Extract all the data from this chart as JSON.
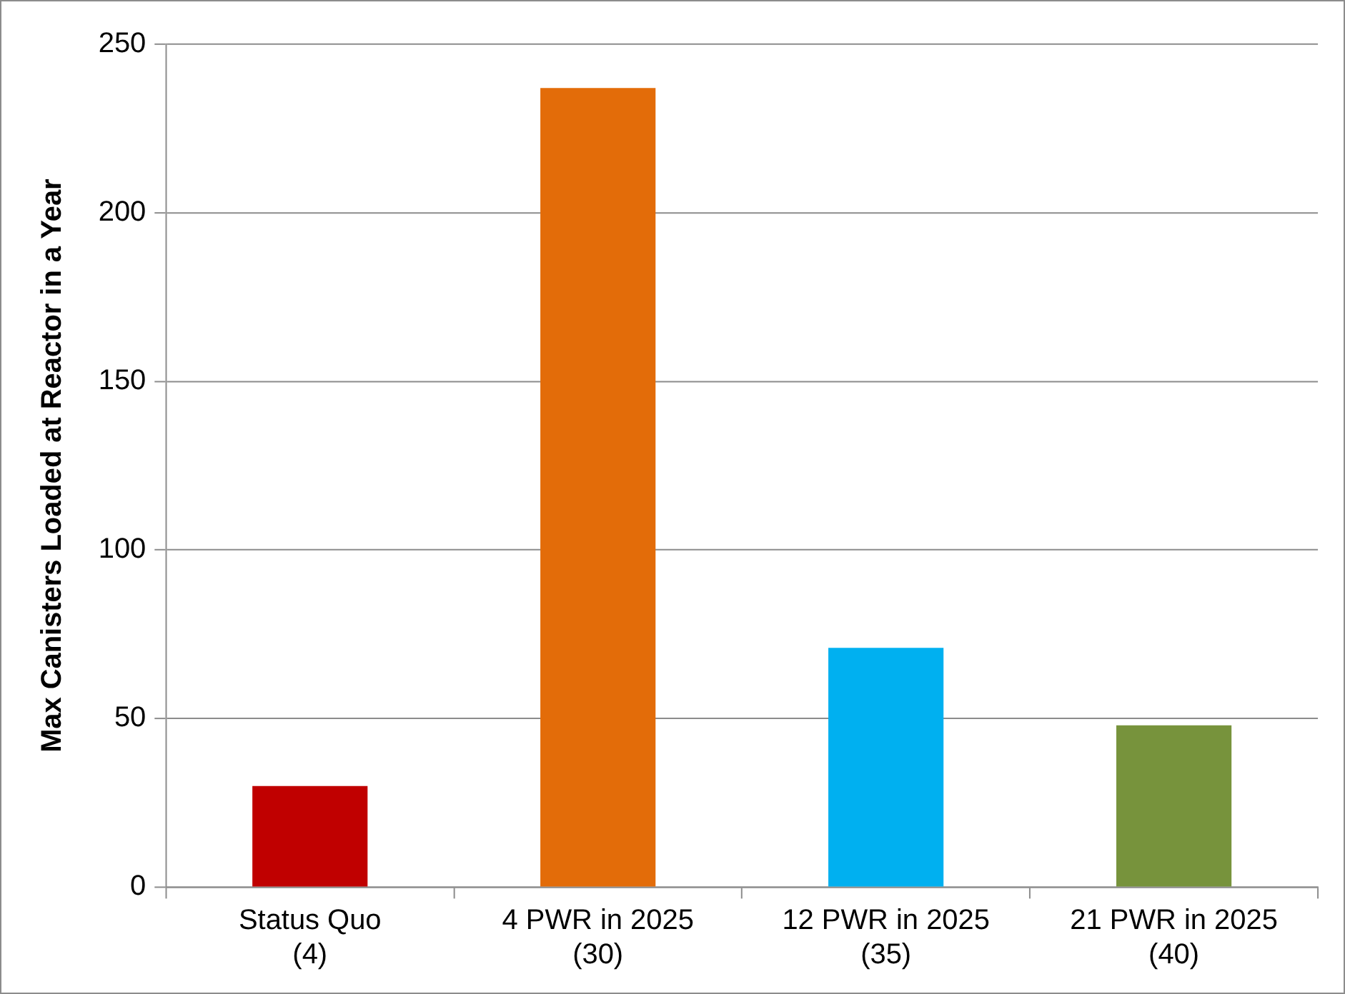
{
  "chart_data": {
    "type": "bar",
    "ylabel": "Max Canisters Loaded at Reactor in a Year",
    "categories": [
      "Status Quo\n(4)",
      "4 PWR in 2025\n(30)",
      "12 PWR in 2025\n(35)",
      "21 PWR in 2025\n(40)"
    ],
    "values": [
      30,
      237,
      71,
      48
    ],
    "colors": [
      "#c00000",
      "#e36c09",
      "#00b0f0",
      "#77933c"
    ],
    "ylim": [
      0,
      250
    ],
    "yticks": [
      0,
      50,
      100,
      150,
      200,
      250
    ],
    "grid": "y",
    "legend": false
  }
}
